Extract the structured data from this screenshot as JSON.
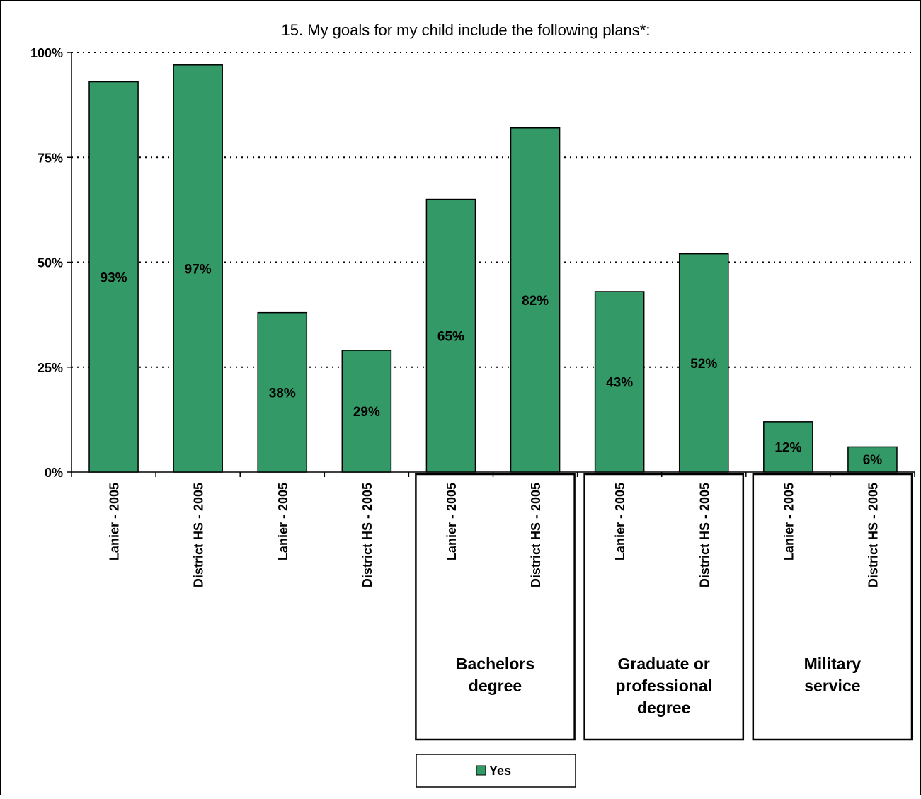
{
  "chart_data": {
    "type": "bar",
    "title": "15.  My goals for my child include the following plans*:",
    "xlabel": "",
    "ylabel": "",
    "ylim": [
      0,
      100
    ],
    "yticks": [
      "0%",
      "25%",
      "50%",
      "75%",
      "100%"
    ],
    "grid": true,
    "categories": [
      "Lanier - 2005",
      "District HS - 2005",
      "Lanier - 2005",
      "District HS - 2005",
      "Lanier - 2005",
      "District HS - 2005",
      "Lanier - 2005",
      "District HS - 2005",
      "Lanier - 2005",
      "District HS - 2005"
    ],
    "series": [
      {
        "name": "Yes",
        "color": "#339966",
        "values": [
          93,
          97,
          38,
          29,
          65,
          82,
          43,
          52,
          12,
          6
        ],
        "labels": [
          "93%",
          "97%",
          "38%",
          "29%",
          "65%",
          "82%",
          "43%",
          "52%",
          "12%",
          "6%"
        ]
      }
    ],
    "groups": [
      {
        "label": "",
        "categories": [
          0,
          1
        ]
      },
      {
        "label": "",
        "categories": [
          2,
          3
        ]
      },
      {
        "label": "Bachelors degree",
        "categories": [
          4,
          5
        ]
      },
      {
        "label": "Graduate or professional degree",
        "categories": [
          6,
          7
        ]
      },
      {
        "label": "Military service",
        "categories": [
          8,
          9
        ]
      }
    ],
    "legend": {
      "position": "bottom"
    }
  }
}
